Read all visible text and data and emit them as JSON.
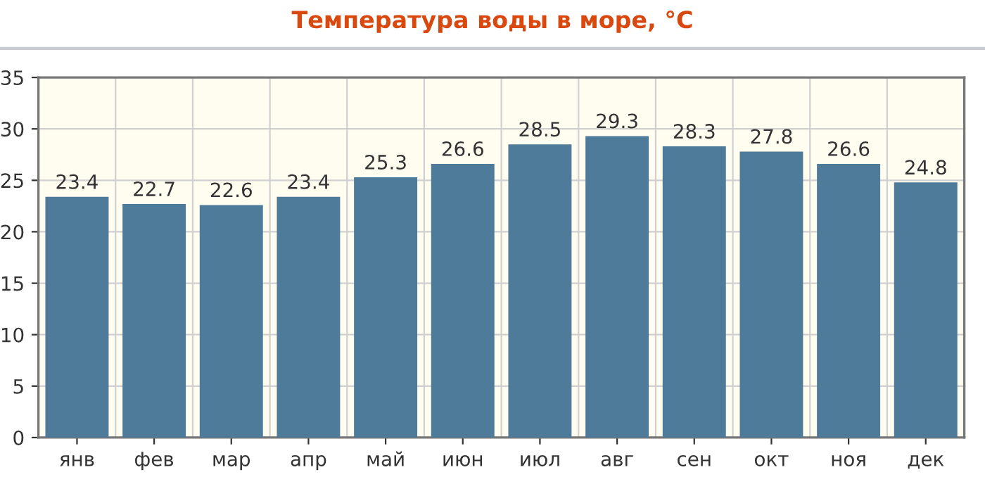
{
  "chart_data": {
    "type": "bar",
    "title": "Температура воды в море, °C",
    "categories": [
      "янв",
      "фев",
      "мар",
      "апр",
      "май",
      "июн",
      "июл",
      "авг",
      "сен",
      "окт",
      "ноя",
      "дек"
    ],
    "values": [
      23.4,
      22.7,
      22.6,
      23.4,
      25.3,
      26.6,
      28.5,
      29.3,
      28.3,
      27.8,
      26.6,
      24.8
    ],
    "color": "#4e7b99",
    "ylim": [
      0,
      35
    ],
    "yticks": [
      0,
      5,
      10,
      15,
      20,
      25,
      30,
      35
    ],
    "grid": true,
    "data_labels": true
  }
}
